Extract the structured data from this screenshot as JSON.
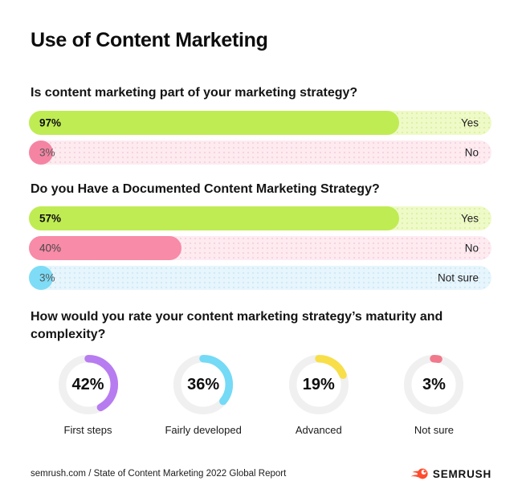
{
  "page": {
    "title": "Use of Content Marketing",
    "background": "#ffffff"
  },
  "questions": [
    {
      "heading": "Is content marketing part of your marketing strategy?",
      "bars": [
        {
          "value_label": "97%",
          "percent": 97,
          "answer": "Yes",
          "fill_color": "#bfec53",
          "track_color": "#eefac7",
          "track_dot_color": "#ddf0a4",
          "value_color": "#0f0f0f",
          "value_bold": true,
          "display_fraction": 0.8
        },
        {
          "value_label": "3%",
          "percent": 3,
          "answer": "No",
          "fill_color": "#f584a3",
          "track_color": "#fdebf0",
          "track_dot_color": "#f5d3de",
          "value_color": "#58585a",
          "value_bold": false,
          "display_fraction": 0.052
        }
      ]
    },
    {
      "heading": "Do you Have a Documented Content Marketing Strategy?",
      "bars": [
        {
          "value_label": "57%",
          "percent": 57,
          "answer": "Yes",
          "fill_color": "#bfec53",
          "track_color": "#eefac7",
          "track_dot_color": "#ddf0a4",
          "value_color": "#0f0f0f",
          "value_bold": true,
          "display_fraction": 0.8
        },
        {
          "value_label": "40%",
          "percent": 40,
          "answer": "No",
          "fill_color": "#f88ba7",
          "track_color": "#fdebf0",
          "track_dot_color": "#f5d3de",
          "value_color": "#454547",
          "value_bold": false,
          "display_fraction": 0.33
        },
        {
          "value_label": "3%",
          "percent": 3,
          "answer": "Not sure",
          "fill_color": "#7edcf6",
          "track_color": "#e7f5fc",
          "track_dot_color": "#cfe9f6",
          "value_color": "#58585a",
          "value_bold": false,
          "display_fraction": 0.052
        }
      ]
    }
  ],
  "donut_question": {
    "heading": "How would you rate your content marketing strategy’s maturity and complexity?",
    "items": [
      {
        "value_label": "42%",
        "percent": 42,
        "label": "First steps",
        "color": "#b77cf0"
      },
      {
        "value_label": "36%",
        "percent": 36,
        "label": "Fairly developed",
        "color": "#74daf6"
      },
      {
        "value_label": "19%",
        "percent": 19,
        "label": "Advanced",
        "color": "#f8df49"
      },
      {
        "value_label": "3%",
        "percent": 3,
        "label": "Not sure",
        "color": "#f1798c"
      }
    ]
  },
  "footer": {
    "source": "semrush.com / State of Content Marketing 2022 Global Report",
    "logo_text": "SEMRUSH",
    "logo_color": "#ff4b2e"
  },
  "chart_data": [
    {
      "type": "bar",
      "title": "Is content marketing part of your marketing strategy?",
      "categories": [
        "Yes",
        "No"
      ],
      "values": [
        97,
        3
      ],
      "unit": "%",
      "orientation": "horizontal",
      "colors": [
        "#bfec53",
        "#f584a3"
      ],
      "xlim": [
        0,
        100
      ],
      "grid": false,
      "legend": "none"
    },
    {
      "type": "bar",
      "title": "Do you Have a Documented Content Marketing Strategy?",
      "categories": [
        "Yes",
        "No",
        "Not sure"
      ],
      "values": [
        57,
        40,
        3
      ],
      "unit": "%",
      "orientation": "horizontal",
      "colors": [
        "#bfec53",
        "#f88ba7",
        "#7edcf6"
      ],
      "xlim": [
        0,
        100
      ],
      "grid": false,
      "legend": "none"
    },
    {
      "type": "pie",
      "subtype": "donut-gauges",
      "title": "How would you rate your content marketing strategy’s maturity and complexity?",
      "categories": [
        "First steps",
        "Fairly developed",
        "Advanced",
        "Not sure"
      ],
      "values": [
        42,
        36,
        19,
        3
      ],
      "unit": "%",
      "colors": [
        "#b77cf0",
        "#74daf6",
        "#f8df49",
        "#f1798c"
      ],
      "legend": "below-each-donut"
    }
  ]
}
